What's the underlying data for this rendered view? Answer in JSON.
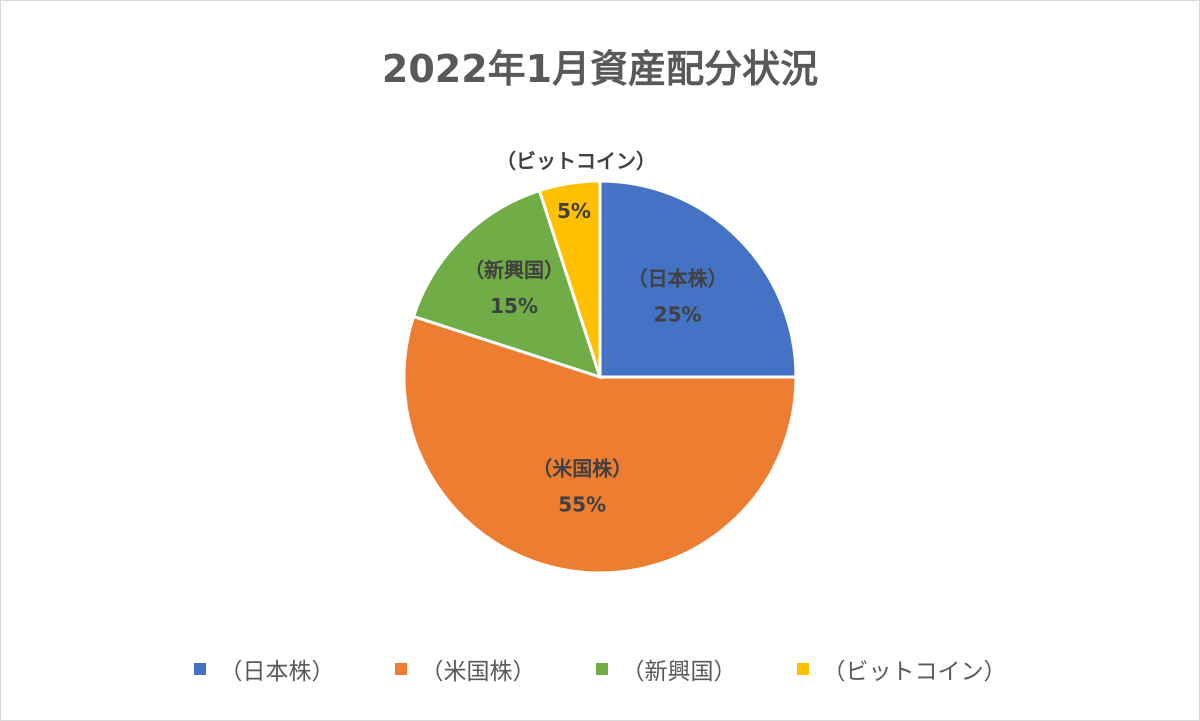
{
  "chart_data": {
    "type": "pie",
    "title": "2022年1月資産配分状況",
    "categories": [
      "（日本株）",
      "（米国株）",
      "（新興国）",
      "（ビットコイン）"
    ],
    "values": [
      25,
      55,
      15,
      5
    ],
    "value_labels": [
      "25%",
      "55%",
      "15%",
      "5%"
    ],
    "colors": [
      "#4472C4",
      "#ED7D31",
      "#70AD47",
      "#FFC000"
    ],
    "legend": "bottom",
    "start_angle": "12 o'clock",
    "direction": "clockwise"
  }
}
